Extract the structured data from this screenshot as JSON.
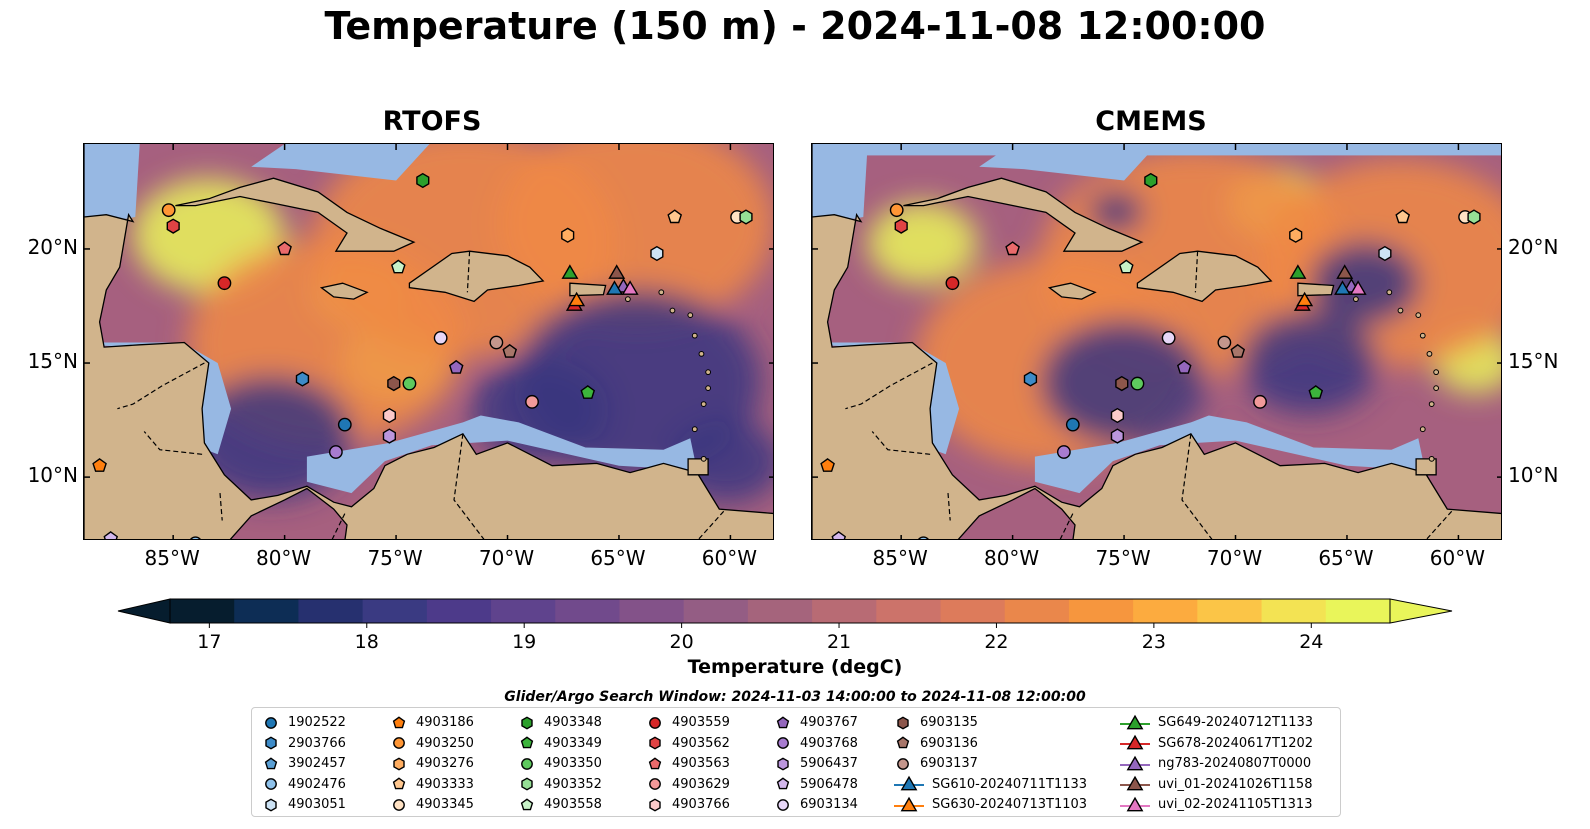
{
  "title": "Temperature (150 m) - 2024-11-08 12:00:00",
  "panels": [
    {
      "name": "rtofs",
      "title": "RTOFS",
      "model": "rtofs"
    },
    {
      "name": "cmems",
      "title": "CMEMS",
      "model": "cmems"
    }
  ],
  "axes": {
    "lon_ticks": [
      "85°W",
      "80°W",
      "75°W",
      "70°W",
      "65°W",
      "60°W"
    ],
    "lon_values": [
      -85,
      -80,
      -75,
      -70,
      -65,
      -60
    ],
    "lat_ticks": [
      "20°N",
      "15°N",
      "10°N"
    ],
    "lat_values": [
      20,
      15,
      10
    ],
    "lon_range": [
      -89,
      -58
    ],
    "lat_range": [
      7.2,
      24.6
    ]
  },
  "colorbar": {
    "label": "Temperature (degC)",
    "ticks": [
      "17",
      "18",
      "19",
      "20",
      "21",
      "22",
      "23",
      "24"
    ],
    "tick_values": [
      17,
      18,
      19,
      20,
      21,
      22,
      23,
      24
    ],
    "min": 16.75,
    "max": 24.5,
    "extend": "both",
    "colors": [
      "#061d2e",
      "#0d2d55",
      "#26306f",
      "#3a3a82",
      "#4d3a8a",
      "#5f438d",
      "#714a8c",
      "#835289",
      "#945d84",
      "#a5647c",
      "#b86b74",
      "#cc736a",
      "#dd7b5b",
      "#ea874b",
      "#f6963e",
      "#fcab3f",
      "#fbc547",
      "#f3e353",
      "#e9f55a"
    ]
  },
  "colors": {
    "land": "#d1b48c",
    "shallow": "#97b8e3",
    "deep": "#041a29",
    "cold": "#3a3580",
    "warm": "#f08a45",
    "hot": "#eaf45a",
    "border": "#000000"
  },
  "legend": {
    "title": "Glider/Argo Search Window: 2024-11-03 14:00:00 to 2024-11-08 12:00:00",
    "columns": [
      [
        {
          "label": "1902522",
          "marker": "circle",
          "color": "#1f77b4"
        },
        {
          "label": "2903766",
          "marker": "hexagon",
          "color": "#3d8bc8"
        },
        {
          "label": "3902457",
          "marker": "pentagon",
          "color": "#5a9fd4"
        },
        {
          "label": "4902476",
          "marker": "circle",
          "color": "#8ec1ea"
        },
        {
          "label": "4903051",
          "marker": "hexagon",
          "color": "#cde3f5"
        }
      ],
      [
        {
          "label": "4903186",
          "marker": "pentagon",
          "color": "#ff7f0e"
        },
        {
          "label": "4903250",
          "marker": "circle",
          "color": "#ff9635"
        },
        {
          "label": "4903276",
          "marker": "hexagon",
          "color": "#ffad60"
        },
        {
          "label": "4903333",
          "marker": "pentagon",
          "color": "#ffc78f"
        },
        {
          "label": "4903345",
          "marker": "circle",
          "color": "#ffe2c4"
        }
      ],
      [
        {
          "label": "4903348",
          "marker": "hexagon",
          "color": "#2ca02c"
        },
        {
          "label": "4903349",
          "marker": "pentagon",
          "color": "#3cb43c"
        },
        {
          "label": "4903350",
          "marker": "circle",
          "color": "#5ec95e"
        },
        {
          "label": "4903352",
          "marker": "hexagon",
          "color": "#96df96"
        },
        {
          "label": "4903558",
          "marker": "pentagon",
          "color": "#c8f2c8"
        }
      ],
      [
        {
          "label": "4903559",
          "marker": "circle",
          "color": "#d62728"
        },
        {
          "label": "4903562",
          "marker": "hexagon",
          "color": "#e04344"
        },
        {
          "label": "4903563",
          "marker": "pentagon",
          "color": "#ea6a6b"
        },
        {
          "label": "4903629",
          "marker": "circle",
          "color": "#f29a9a"
        },
        {
          "label": "4903766",
          "marker": "hexagon",
          "color": "#fbcaca"
        }
      ],
      [
        {
          "label": "4903767",
          "marker": "pentagon",
          "color": "#9467bd"
        },
        {
          "label": "4903768",
          "marker": "circle",
          "color": "#a87cd0"
        },
        {
          "label": "5906437",
          "marker": "hexagon",
          "color": "#bb96dd"
        },
        {
          "label": "5906478",
          "marker": "pentagon",
          "color": "#d3b7ec"
        },
        {
          "label": "6903134",
          "marker": "circle",
          "color": "#e7d6f7"
        }
      ],
      [
        {
          "label": "6903135",
          "marker": "hexagon",
          "color": "#8c564b"
        },
        {
          "label": "6903136",
          "marker": "pentagon",
          "color": "#a8766a"
        },
        {
          "label": "6903137",
          "marker": "circle",
          "color": "#c4968c"
        },
        {
          "label": "SG610-20240711T1133",
          "marker": "triangle-line",
          "color": "#1f77b4"
        },
        {
          "label": "SG630-20240713T1103",
          "marker": "triangle-line",
          "color": "#ff7f0e"
        }
      ],
      [
        {
          "label": "SG649-20240712T1133",
          "marker": "triangle-line",
          "color": "#2ca02c"
        },
        {
          "label": "SG678-20240617T1202",
          "marker": "triangle-line",
          "color": "#d62728"
        },
        {
          "label": "ng783-20240807T0000",
          "marker": "triangle-line",
          "color": "#9467bd"
        },
        {
          "label": "uvi_01-20241026T1158",
          "marker": "triangle-line",
          "color": "#8c564b"
        },
        {
          "label": "uvi_02-20241105T1313",
          "marker": "triangle-line",
          "color": "#e377c2"
        }
      ]
    ]
  },
  "markers": [
    {
      "id": "4903250",
      "lon": -85.2,
      "lat": 21.7,
      "shape": "circle",
      "color": "#ff9635"
    },
    {
      "id": "4903562",
      "lon": -85.0,
      "lat": 21.0,
      "shape": "hexagon",
      "color": "#e04344"
    },
    {
      "id": "4903563",
      "lon": -80.0,
      "lat": 20.0,
      "shape": "pentagon",
      "color": "#ea6a6b"
    },
    {
      "id": "4903559",
      "lon": -82.7,
      "lat": 18.5,
      "shape": "circle",
      "color": "#d62728"
    },
    {
      "id": "4903348",
      "lon": -73.8,
      "lat": 23.0,
      "shape": "hexagon",
      "color": "#2ca02c"
    },
    {
      "id": "4903558",
      "lon": -74.9,
      "lat": 19.2,
      "shape": "pentagon",
      "color": "#c8f2c8"
    },
    {
      "id": "4903276",
      "lon": -67.3,
      "lat": 20.6,
      "shape": "hexagon",
      "color": "#ffad60"
    },
    {
      "id": "4903333",
      "lon": -62.5,
      "lat": 21.4,
      "shape": "pentagon",
      "color": "#ffc78f"
    },
    {
      "id": "4903345",
      "lon": -59.7,
      "lat": 21.4,
      "shape": "circle",
      "color": "#ffe2c4"
    },
    {
      "id": "4903352",
      "lon": -59.3,
      "lat": 21.4,
      "shape": "hexagon",
      "color": "#96df96"
    },
    {
      "id": "4903051",
      "lon": -63.3,
      "lat": 19.8,
      "shape": "hexagon",
      "color": "#cde3f5"
    },
    {
      "id": "2903766",
      "lon": -79.2,
      "lat": 14.3,
      "shape": "hexagon",
      "color": "#3d8bc8"
    },
    {
      "id": "6903135",
      "lon": -75.1,
      "lat": 14.1,
      "shape": "hexagon",
      "color": "#8c564b"
    },
    {
      "id": "4903350",
      "lon": -74.4,
      "lat": 14.1,
      "shape": "circle",
      "color": "#5ec95e"
    },
    {
      "id": "6903134",
      "lon": -73.0,
      "lat": 16.1,
      "shape": "circle",
      "color": "#e7d6f7"
    },
    {
      "id": "4903767",
      "lon": -72.3,
      "lat": 14.8,
      "shape": "pentagon",
      "color": "#9467bd"
    },
    {
      "id": "6903137",
      "lon": -70.5,
      "lat": 15.9,
      "shape": "circle",
      "color": "#c4968c"
    },
    {
      "id": "6903136",
      "lon": -69.9,
      "lat": 15.5,
      "shape": "pentagon",
      "color": "#a8766a"
    },
    {
      "id": "4903349",
      "lon": -66.4,
      "lat": 13.7,
      "shape": "pentagon",
      "color": "#3cb43c"
    },
    {
      "id": "4903629",
      "lon": -68.9,
      "lat": 13.3,
      "shape": "circle",
      "color": "#f29a9a"
    },
    {
      "id": "1902522",
      "lon": -77.3,
      "lat": 12.3,
      "shape": "circle",
      "color": "#1f77b4"
    },
    {
      "id": "4903766",
      "lon": -75.3,
      "lat": 12.7,
      "shape": "hexagon",
      "color": "#fbcaca"
    },
    {
      "id": "5906437",
      "lon": -75.3,
      "lat": 11.8,
      "shape": "hexagon",
      "color": "#bb96dd"
    },
    {
      "id": "4903768",
      "lon": -77.7,
      "lat": 11.1,
      "shape": "circle",
      "color": "#a87cd0"
    },
    {
      "id": "4903186",
      "lon": -88.3,
      "lat": 10.5,
      "shape": "pentagon",
      "color": "#ff7f0e"
    },
    {
      "id": "5906478",
      "lon": -87.8,
      "lat": 7.3,
      "shape": "pentagon",
      "color": "#d3b7ec"
    },
    {
      "id": "4902476",
      "lon": -84.0,
      "lat": 7.1,
      "shape": "circle",
      "color": "#8ec1ea"
    },
    {
      "id": "SG649-20240712T1133",
      "lon": -67.2,
      "lat": 18.9,
      "shape": "triangle",
      "color": "#2ca02c"
    },
    {
      "id": "SG678-20240617T1202",
      "lon": -67.0,
      "lat": 17.5,
      "shape": "triangle",
      "color": "#d62728"
    },
    {
      "id": "SG630-20240713T1103",
      "lon": -66.9,
      "lat": 17.7,
      "shape": "triangle",
      "color": "#ff7f0e"
    },
    {
      "id": "uvi_01-20241026T1158",
      "lon": -65.1,
      "lat": 18.9,
      "shape": "triangle",
      "color": "#8c564b"
    },
    {
      "id": "ng783-20240807T0000",
      "lon": -64.8,
      "lat": 18.3,
      "shape": "triangle",
      "color": "#9467bd"
    },
    {
      "id": "SG610-20240711T1133",
      "lon": -65.2,
      "lat": 18.2,
      "shape": "triangle",
      "color": "#1f77b4"
    },
    {
      "id": "uvi_02-20241105T1313",
      "lon": -64.5,
      "lat": 18.2,
      "shape": "triangle",
      "color": "#e377c2"
    }
  ]
}
